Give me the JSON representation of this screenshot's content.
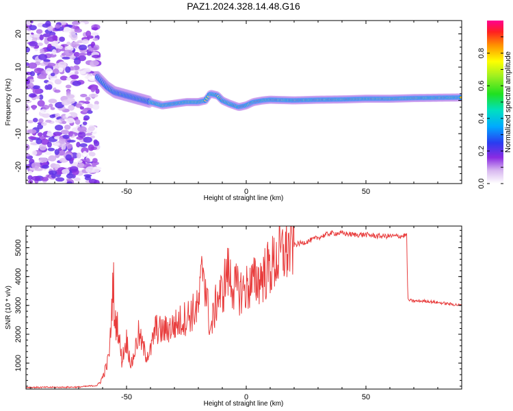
{
  "page": {
    "title": "PAZ1.2024.328.14.48.G16"
  },
  "chart_data": [
    {
      "type": "heatmap",
      "xlabel": "Height of straight line (km)",
      "ylabel": "Frequency (Hz)",
      "xlim": [
        -92,
        90
      ],
      "ylim": [
        -25,
        24
      ],
      "xticks": [
        -50,
        0,
        50
      ],
      "yticks": [
        -20,
        -10,
        0,
        10,
        20
      ],
      "grid": false,
      "colorbar": {
        "label": "Normalized spectral amplitude",
        "range": [
          0.0,
          1.0
        ],
        "ticks": [
          0.0,
          0.2,
          0.4,
          0.6,
          0.8
        ],
        "tick_labels": [
          "0.0",
          "0.2",
          "0.4",
          "0.6",
          "0.8"
        ],
        "colormap": "rainbow (white-violet-blue-cyan-green-yellow-red-magenta)"
      },
      "ridge": {
        "description": "dominant frequency track (peak amplitude ~1.0)",
        "x": [
          -62,
          -58,
          -55,
          -50,
          -45,
          -40,
          -35,
          -30,
          -25,
          -20,
          -17,
          -15,
          -12,
          -10,
          -7,
          -5,
          -3,
          0,
          3,
          7,
          10,
          20,
          30,
          40,
          50,
          60,
          70,
          80,
          90
        ],
        "y": [
          7,
          4,
          2.5,
          1.5,
          0.5,
          -0.5,
          -1.5,
          -1,
          -0.5,
          -0.5,
          0,
          2,
          1.5,
          0,
          -1,
          -1.5,
          -2,
          -1.5,
          -0.5,
          0,
          0.2,
          0,
          0.2,
          0.3,
          0.5,
          0.5,
          0.7,
          0.8,
          0.9
        ]
      },
      "noise_region": {
        "description": "diffuse low-amplitude scatter across full frequency range",
        "x_range": [
          -92,
          -62
        ],
        "amplitude_range": [
          0.0,
          0.15
        ]
      }
    },
    {
      "type": "line",
      "xlabel": "Height of straight line (km)",
      "ylabel": "SNR (10 * v/v)",
      "xlim": [
        -92,
        90
      ],
      "ylim": [
        100,
        5750
      ],
      "xticks": [
        -50,
        0,
        50
      ],
      "yticks": [
        1000,
        2000,
        3000,
        4000,
        5000
      ],
      "grid": false,
      "series": [
        {
          "color": "#e83c3c",
          "x": [
            -92,
            -80,
            -70,
            -62,
            -60,
            -58,
            -57,
            -55.5,
            -55,
            -54,
            -52,
            -50,
            -48,
            -45,
            -42,
            -40,
            -38,
            -35,
            -30,
            -25,
            -20,
            -18,
            -15,
            -12,
            -10,
            -8,
            -5,
            -2,
            0,
            5,
            10,
            15,
            20,
            25,
            30,
            35,
            40,
            45,
            50,
            55,
            60,
            65,
            67,
            67.5,
            68,
            70,
            75,
            80,
            85,
            90
          ],
          "y": [
            160,
            160,
            170,
            230,
            500,
            1000,
            1500,
            4050,
            2200,
            2500,
            1100,
            1800,
            900,
            2000,
            1300,
            1400,
            2200,
            2100,
            2300,
            2600,
            2900,
            4500,
            2100,
            3300,
            3400,
            4200,
            3600,
            3500,
            3600,
            3900,
            4300,
            4800,
            5100,
            5200,
            5350,
            5500,
            5500,
            5450,
            5450,
            5400,
            5400,
            5400,
            5450,
            3200,
            3180,
            3150,
            3150,
            3100,
            3050,
            3000
          ]
        }
      ]
    }
  ]
}
